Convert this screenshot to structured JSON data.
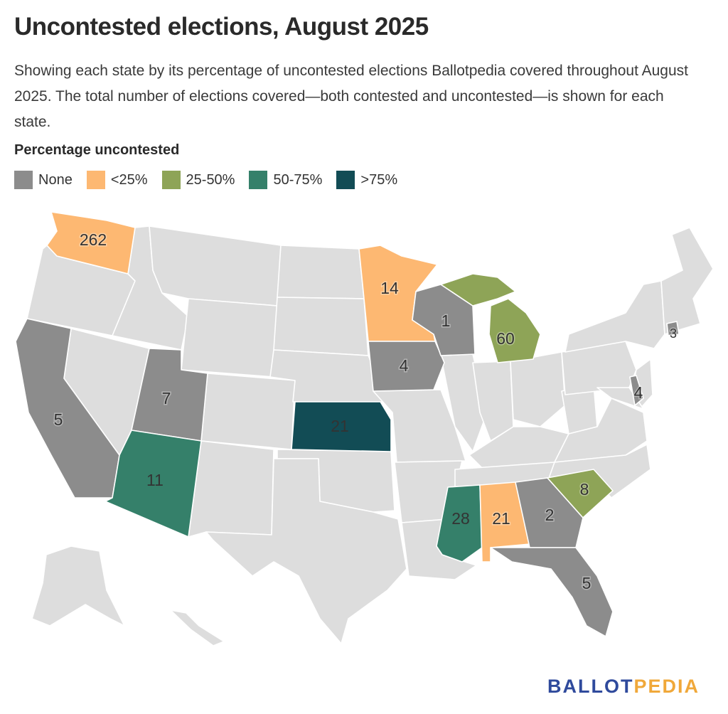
{
  "title": "Uncontested elections, August 2025",
  "subtitle": "Showing each state by its percentage of uncontested elections Ballotpedia covered throughout August 2025. The total number of elections covered—both contested and uncontested—is shown for each state.",
  "legend": {
    "title": "Percentage uncontested",
    "items": [
      {
        "label": "None",
        "color": "#8c8c8c"
      },
      {
        "label": "<25%",
        "color": "#fdb872"
      },
      {
        "label": "25-50%",
        "color": "#8ea457"
      },
      {
        "label": "50-75%",
        "color": "#35806a"
      },
      {
        "label": ">75%",
        "color": "#124c55"
      }
    ]
  },
  "base_color": "#dddddd",
  "states": {
    "WA": {
      "category": "<25%",
      "label": "262"
    },
    "CA": {
      "category": "None",
      "label": "5"
    },
    "UT": {
      "category": "None",
      "label": "7"
    },
    "AZ": {
      "category": "50-75%",
      "label": "11"
    },
    "KS": {
      "category": ">75%",
      "label": "21"
    },
    "MN": {
      "category": "<25%",
      "label": "14"
    },
    "IA": {
      "category": "None",
      "label": "4"
    },
    "WI": {
      "category": "None",
      "label": "1"
    },
    "MI": {
      "category": "25-50%",
      "label": "60"
    },
    "MS": {
      "category": "50-75%",
      "label": "28"
    },
    "AL": {
      "category": "<25%",
      "label": "21"
    },
    "GA": {
      "category": "None",
      "label": "2"
    },
    "FL": {
      "category": "None",
      "label": "5"
    },
    "SC": {
      "category": "25-50%",
      "label": "8"
    },
    "DE": {
      "category": "None",
      "label": "4"
    },
    "RI": {
      "category": "None",
      "label": "3"
    }
  },
  "logo": {
    "part1": "BALLOT",
    "part2": "PEDIA"
  }
}
